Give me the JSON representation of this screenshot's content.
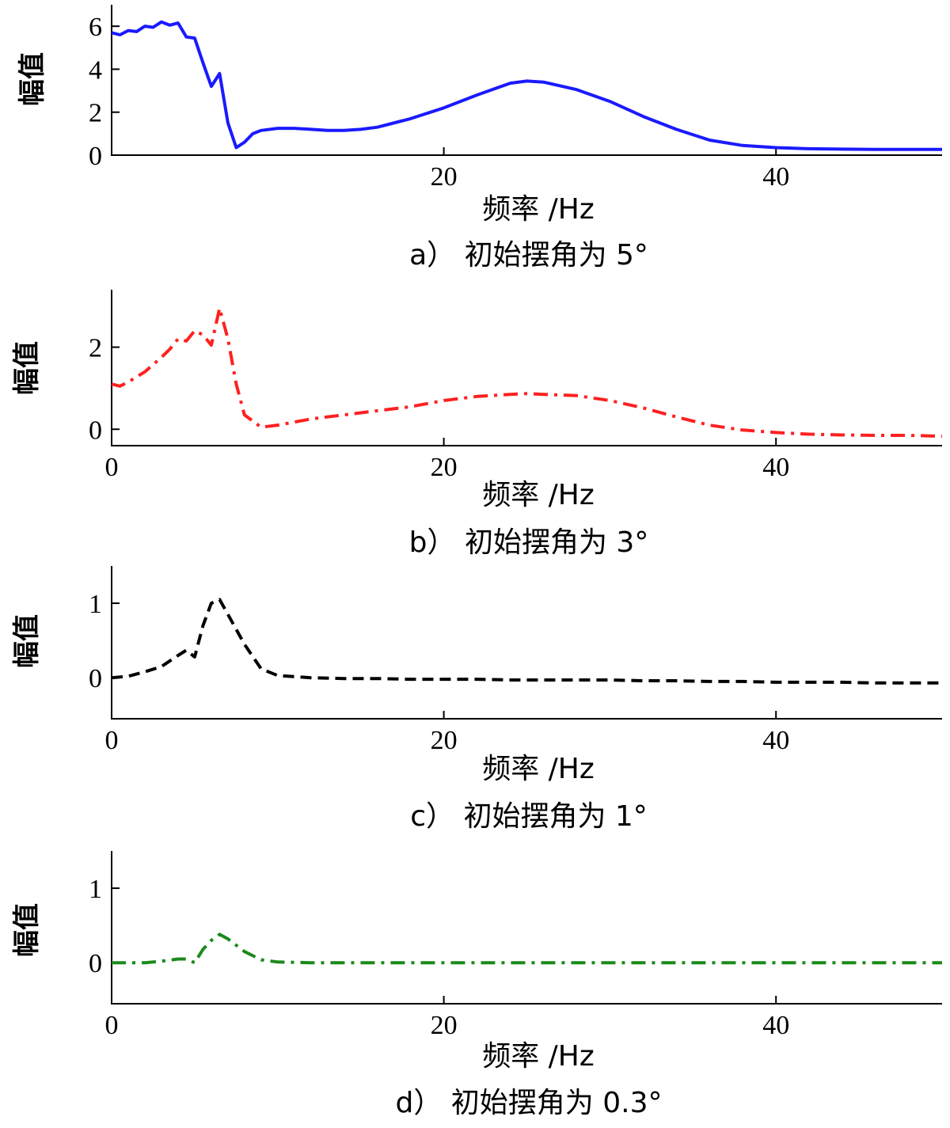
{
  "chart_data": [
    {
      "type": "line",
      "caption": "a） 初始摆角为 5°",
      "xlabel": "频率 /Hz",
      "ylabel": "幅值",
      "xlim": [
        0,
        50
      ],
      "ylim": [
        0,
        7
      ],
      "xticks": [
        "20",
        "40"
      ],
      "yticks": [
        "0",
        "2",
        "4",
        "6"
      ],
      "color": "#1a1aff",
      "dash": "solid",
      "series": [
        {
          "x": [
            0,
            0.5,
            1,
            1.5,
            2,
            2.5,
            3,
            3.5,
            4,
            4.5,
            5,
            5.5,
            6,
            6.5,
            7,
            7.5,
            8,
            8.5,
            9,
            10,
            11,
            12,
            13,
            14,
            15,
            16,
            18,
            20,
            22,
            24,
            25,
            26,
            28,
            30,
            32,
            34,
            36,
            38,
            40,
            42,
            44,
            46,
            48,
            50
          ],
          "y": [
            5.7,
            5.6,
            5.8,
            5.75,
            6.0,
            5.95,
            6.2,
            6.05,
            6.15,
            5.5,
            5.45,
            4.3,
            3.2,
            3.8,
            1.5,
            0.35,
            0.6,
            1.0,
            1.15,
            1.25,
            1.25,
            1.2,
            1.15,
            1.15,
            1.2,
            1.3,
            1.7,
            2.2,
            2.8,
            3.35,
            3.45,
            3.4,
            3.05,
            2.5,
            1.8,
            1.2,
            0.7,
            0.45,
            0.35,
            0.3,
            0.28,
            0.27,
            0.27,
            0.27
          ]
        }
      ]
    },
    {
      "type": "line",
      "caption": "b） 初始摆角为 3°",
      "xlabel": "频率 /Hz",
      "ylabel": "幅值",
      "xlim": [
        0,
        50
      ],
      "ylim": [
        -0.4,
        3.4
      ],
      "xticks": [
        "0",
        "20",
        "40"
      ],
      "yticks": [
        "0",
        "2"
      ],
      "color": "#ff2020",
      "dash": "dashdot",
      "series": [
        {
          "x": [
            0,
            0.5,
            1,
            2,
            3,
            3.5,
            4,
            4.5,
            5,
            5.5,
            6,
            6.5,
            7,
            7.5,
            8,
            9,
            10,
            12,
            14,
            16,
            18,
            20,
            22,
            24,
            25,
            26,
            28,
            30,
            32,
            34,
            36,
            38,
            40,
            42,
            44,
            46,
            48,
            50
          ],
          "y": [
            1.1,
            1.05,
            1.15,
            1.4,
            1.75,
            1.95,
            2.2,
            2.15,
            2.4,
            2.3,
            2.05,
            2.95,
            2.2,
            1.1,
            0.35,
            0.05,
            0.1,
            0.25,
            0.35,
            0.45,
            0.55,
            0.7,
            0.8,
            0.85,
            0.87,
            0.85,
            0.82,
            0.7,
            0.52,
            0.3,
            0.1,
            -0.02,
            -0.08,
            -0.12,
            -0.14,
            -0.15,
            -0.15,
            -0.17
          ]
        }
      ]
    },
    {
      "type": "line",
      "caption": "c） 初始摆角为 1°",
      "xlabel": "频率 /Hz",
      "ylabel": "幅值",
      "xlim": [
        0,
        50
      ],
      "ylim": [
        -0.55,
        1.5
      ],
      "xticks": [
        "0",
        "20",
        "40"
      ],
      "yticks": [
        "0",
        "1"
      ],
      "color": "#000000",
      "dash": "dashed",
      "series": [
        {
          "x": [
            0,
            1,
            2,
            3,
            4,
            4.5,
            5,
            5.5,
            6,
            6.5,
            7,
            8,
            9,
            10,
            12,
            14,
            16,
            18,
            20,
            22,
            24,
            26,
            28,
            30,
            32,
            34,
            36,
            38,
            40,
            42,
            44,
            46,
            48,
            50
          ],
          "y": [
            0.0,
            0.02,
            0.08,
            0.15,
            0.3,
            0.37,
            0.28,
            0.7,
            1.0,
            1.05,
            0.85,
            0.45,
            0.12,
            0.03,
            0.0,
            -0.01,
            -0.01,
            -0.02,
            -0.02,
            -0.02,
            -0.03,
            -0.03,
            -0.03,
            -0.03,
            -0.04,
            -0.04,
            -0.05,
            -0.05,
            -0.06,
            -0.06,
            -0.06,
            -0.07,
            -0.07,
            -0.07
          ]
        }
      ]
    },
    {
      "type": "line",
      "caption": "d） 初始摆角为 0.3°",
      "xlabel": "频率 /Hz",
      "ylabel": "幅值",
      "xlim": [
        0,
        50
      ],
      "ylim": [
        -0.55,
        1.5
      ],
      "xticks": [
        "0",
        "20",
        "40"
      ],
      "yticks": [
        "0",
        "1"
      ],
      "color": "#1a8a1a",
      "dash": "dashdot",
      "series": [
        {
          "x": [
            0,
            1,
            2,
            3,
            4,
            4.5,
            5,
            5.5,
            6,
            6.5,
            7,
            8,
            9,
            10,
            12,
            15,
            20,
            25,
            30,
            35,
            40,
            45,
            50
          ],
          "y": [
            0.0,
            0.0,
            0.0,
            0.02,
            0.05,
            0.05,
            0.0,
            0.18,
            0.3,
            0.38,
            0.32,
            0.15,
            0.04,
            0.01,
            0.0,
            0.0,
            0.0,
            0.0,
            0.0,
            0.0,
            0.0,
            0.0,
            0.0
          ]
        }
      ]
    }
  ]
}
